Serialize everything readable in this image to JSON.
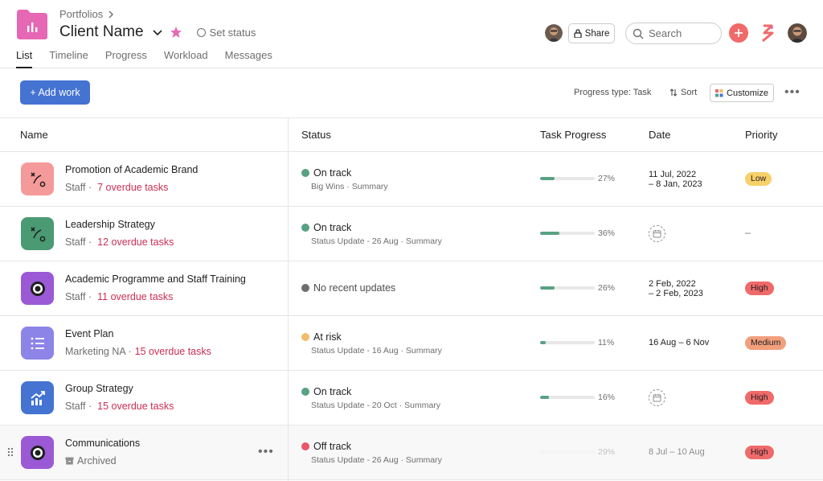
{
  "header": {
    "breadcrumb": "Portfolios",
    "title": "Client Name",
    "set_status": "Set status",
    "tabs": [
      "List",
      "Timeline",
      "Progress",
      "Workload",
      "Messages"
    ],
    "share": "Share",
    "search_placeholder": "Search"
  },
  "toolbar": {
    "add_work": "+ Add work",
    "progress_type": "Progress type: Task",
    "sort": "Sort",
    "customize": "Customize"
  },
  "columns": {
    "name": "Name",
    "status": "Status",
    "task_progress": "Task Progress",
    "date": "Date",
    "priority": "Priority"
  },
  "rows": [
    {
      "name": "Promotion of Academic Brand",
      "owner": "Staff ·",
      "overdue": "7 overdue tasks",
      "icon": "path-icon",
      "icon_color": "#f59a9a",
      "status": "On track",
      "status_color": "#58a182",
      "status_sub": "Big Wins · Summary",
      "progress": 27,
      "progress_label": "27%",
      "date_line1": "11 Jul, 2022",
      "date_line2": "– 8 Jan, 2023",
      "priority": "Low",
      "priority_color": "#f7d06a"
    },
    {
      "name": "Leadership Strategy",
      "owner": "Staff ·",
      "overdue": "12 overdue tasks",
      "icon": "path-icon",
      "icon_color": "#4a9a73",
      "status": "On track",
      "status_color": "#58a182",
      "status_sub": "Status Update - 26 Aug · Summary",
      "progress": 36,
      "progress_label": "36%",
      "date_line1": "",
      "date_line2": "",
      "priority": "–",
      "priority_color": ""
    },
    {
      "name": "Academic Programme and Staff Training",
      "owner": "Staff ·",
      "overdue": "11 overdue tasks",
      "icon": "target-icon",
      "icon_color": "#9b59d6",
      "status": "No recent updates",
      "status_color": "#6d6e6f",
      "status_sub": "",
      "progress": 26,
      "progress_label": "26%",
      "date_line1": "2 Feb, 2022",
      "date_line2": "– 2 Feb, 2023",
      "priority": "High",
      "priority_color": "#f06a6a"
    },
    {
      "name": "Event Plan",
      "owner": "Marketing NA ·",
      "overdue": "15 overdue tasks",
      "icon": "list-icon",
      "icon_color": "#8d84e8",
      "status": "At risk",
      "status_color": "#f1bd6c",
      "status_sub": "Status Update - 16 Aug · Summary",
      "progress": 11,
      "progress_label": "11%",
      "date_line1": "16 Aug – 6 Nov",
      "date_line2": "",
      "priority": "Medium",
      "priority_color": "#f29f7c"
    },
    {
      "name": "Group Strategy",
      "owner": "Staff ·",
      "overdue": "15 overdue tasks",
      "icon": "chart-up-icon",
      "icon_color": "#4573d2",
      "status": "On track",
      "status_color": "#58a182",
      "status_sub": "Status Update - 20 Oct · Summary",
      "progress": 16,
      "progress_label": "16%",
      "date_line1": "",
      "date_line2": "",
      "priority": "High",
      "priority_color": "#f06a6a"
    },
    {
      "name": "Communications",
      "owner": "Archived",
      "overdue": "",
      "icon": "target-icon",
      "icon_color": "#9b59d6",
      "status": "Off track",
      "status_color": "#e8566a",
      "status_sub": "Status Update - 26 Aug · Summary",
      "progress": 29,
      "progress_label": "29%",
      "date_line1": "8 Jul – 10 Aug",
      "date_line2": "",
      "priority": "High",
      "priority_color": "#f06a6a"
    }
  ]
}
